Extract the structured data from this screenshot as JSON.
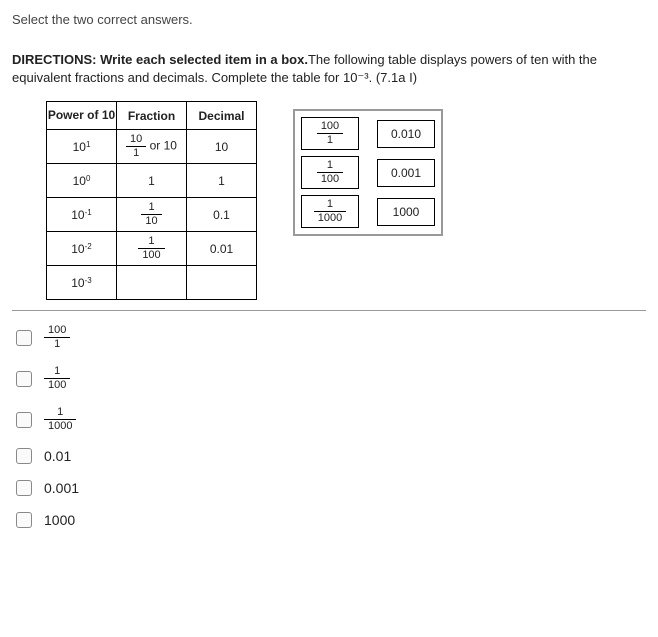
{
  "instruction": "Select the two correct answers.",
  "directions_bold": "DIRECTIONS: Write each selected item in a box.",
  "directions_rest": "The following table displays powers of ten with the equivalent fractions and decimals.  Complete the table for 10⁻³. (7.1a I)",
  "table": {
    "headers": {
      "power": "Power of 10",
      "fraction": "Fraction",
      "decimal": "Decimal"
    },
    "rows": [
      {
        "power_base": "10",
        "power_exp": "1",
        "fraction_html": "frac10_1_or10",
        "decimal": "10"
      },
      {
        "power_base": "10",
        "power_exp": "0",
        "fraction_plain": "1",
        "decimal": "1"
      },
      {
        "power_base": "10",
        "power_exp": "-1",
        "fraction_num": "1",
        "fraction_den": "10",
        "decimal": "0.1"
      },
      {
        "power_base": "10",
        "power_exp": "-2",
        "fraction_num": "1",
        "fraction_den": "100",
        "decimal": "0.01"
      },
      {
        "power_base": "10",
        "power_exp": "-3",
        "fraction_blank": true,
        "decimal_blank": true
      }
    ]
  },
  "tiles": [
    {
      "type": "frac",
      "num": "100",
      "den": "1"
    },
    {
      "type": "text",
      "text": "0.010"
    },
    {
      "type": "frac",
      "num": "1",
      "den": "100"
    },
    {
      "type": "text",
      "text": "0.001"
    },
    {
      "type": "frac",
      "num": "1",
      "den": "1000"
    },
    {
      "type": "text",
      "text": "1000"
    }
  ],
  "options": [
    {
      "id": "opt1",
      "type": "frac",
      "num": "100",
      "den": "1"
    },
    {
      "id": "opt2",
      "type": "frac",
      "num": "1",
      "den": "100"
    },
    {
      "id": "opt3",
      "type": "frac",
      "num": "1",
      "den": "1000"
    },
    {
      "id": "opt4",
      "type": "text",
      "text": "0.01"
    },
    {
      "id": "opt5",
      "type": "text",
      "text": "0.001"
    },
    {
      "id": "opt6",
      "type": "text",
      "text": "1000"
    }
  ]
}
